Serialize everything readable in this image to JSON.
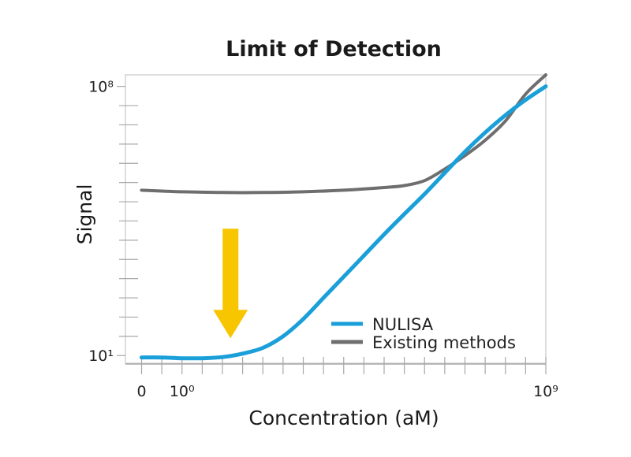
{
  "chart_data": {
    "type": "line",
    "title": "Limit of Detection",
    "xlabel": "Concentration (aM)",
    "ylabel": "Signal",
    "x_ticks": [
      {
        "value": 0,
        "label": "0"
      },
      {
        "value": 1,
        "label": "10⁰"
      },
      {
        "value": 10,
        "label": "10⁹"
      }
    ],
    "y_ticks": [
      {
        "value": 1,
        "label": "10¹"
      },
      {
        "value": 8,
        "label": "10⁸"
      }
    ],
    "xlim": [
      -0.4,
      10
    ],
    "ylim": [
      0.8,
      8.3
    ],
    "grid": false,
    "legend_position": "bottom-right",
    "series": [
      {
        "name": "NULISA",
        "color": "#1a9fd9",
        "x": [
          0,
          0.5,
          1,
          1.5,
          2,
          2.5,
          3,
          3.5,
          4,
          4.5,
          5,
          5.5,
          6,
          6.5,
          7,
          7.5,
          8,
          8.5,
          9,
          9.5,
          10
        ],
        "y": [
          0.95,
          0.95,
          0.93,
          0.93,
          0.96,
          1.05,
          1.2,
          1.5,
          1.95,
          2.5,
          3.05,
          3.6,
          4.15,
          4.68,
          5.2,
          5.75,
          6.3,
          6.8,
          7.25,
          7.65,
          8.0
        ]
      },
      {
        "name": "Existing methods",
        "color": "#6e6e6e",
        "x": [
          0,
          1,
          2,
          3,
          4,
          5,
          6,
          6.5,
          7,
          7.5,
          8,
          8.5,
          9,
          9.5,
          10
        ],
        "y": [
          5.3,
          5.26,
          5.24,
          5.24,
          5.26,
          5.3,
          5.37,
          5.42,
          5.55,
          5.85,
          6.2,
          6.6,
          7.1,
          7.8,
          8.3
        ]
      }
    ],
    "annotations": [
      {
        "type": "arrow",
        "direction": "down",
        "color": "#f7c600",
        "x": 2.2,
        "y_from": 4.3,
        "y_to": 1.45
      }
    ]
  }
}
